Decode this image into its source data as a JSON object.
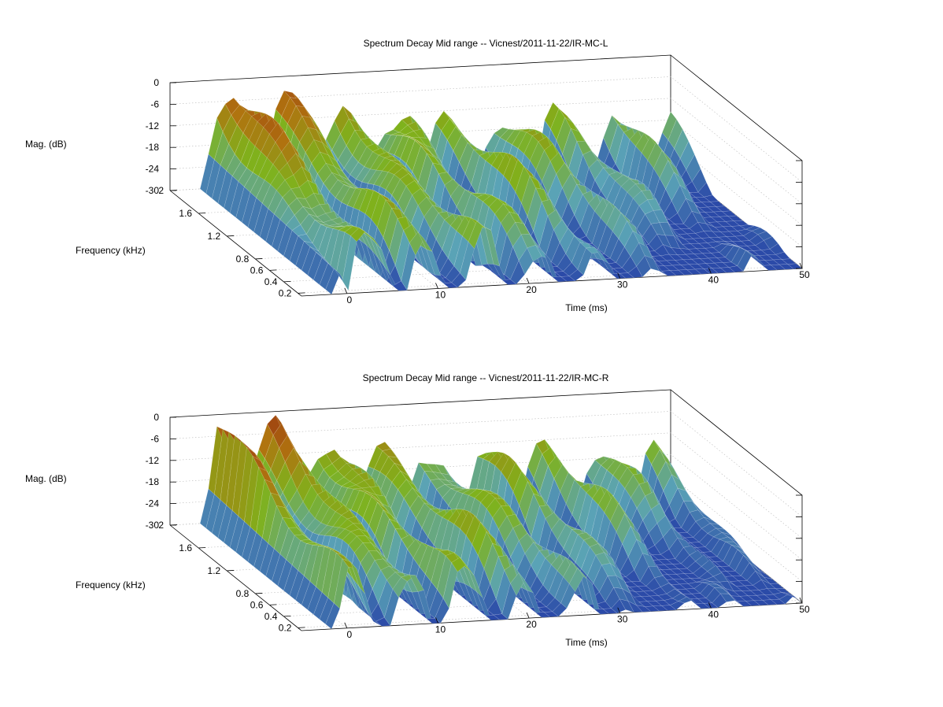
{
  "chart_data": [
    {
      "type": "surface",
      "title": "Spectrum Decay Mid range -- Vicnest/2011-11-22/IR-MC-L",
      "zlabel": "Mag. (dB)",
      "ylabel": "Frequency (kHz)",
      "xlabel": "Time (ms)",
      "zlim": [
        -30,
        0
      ],
      "z_ticks": [
        "0",
        "-6",
        "-12",
        "-18",
        "-24",
        "-30"
      ],
      "x_ticks": [
        "0",
        "10",
        "20",
        "30",
        "40",
        "50"
      ],
      "y_ticks": [
        "0.2",
        "0.4",
        "0.6",
        "0.8",
        "1.2",
        "1.6",
        "2"
      ],
      "xlim": [
        -5,
        50
      ],
      "ylim": [
        0.15,
        2
      ],
      "peak_db": -2,
      "peak_freq_khz": 1.8,
      "colormap": [
        "#2b4aa8",
        "#5aa3b6",
        "#7fb21c",
        "#b0730f",
        "#9a3311"
      ],
      "variant": 0
    },
    {
      "type": "surface",
      "title": "Spectrum Decay Mid range -- Vicnest/2011-11-22/IR-MC-R",
      "zlabel": "Mag. (dB)",
      "ylabel": "Frequency (kHz)",
      "xlabel": "Time (ms)",
      "zlim": [
        -30,
        0
      ],
      "z_ticks": [
        "0",
        "-6",
        "-12",
        "-18",
        "-24",
        "-30"
      ],
      "x_ticks": [
        "0",
        "10",
        "20",
        "30",
        "40",
        "50"
      ],
      "y_ticks": [
        "0.2",
        "0.4",
        "0.6",
        "0.8",
        "1.2",
        "1.6",
        "2"
      ],
      "xlim": [
        -5,
        50
      ],
      "ylim": [
        0.15,
        2
      ],
      "peak_db": -2,
      "peak_freq_khz": 1.8,
      "colormap": [
        "#2b4aa8",
        "#5aa3b6",
        "#7fb21c",
        "#b0730f",
        "#9a3311"
      ],
      "variant": 1
    }
  ]
}
